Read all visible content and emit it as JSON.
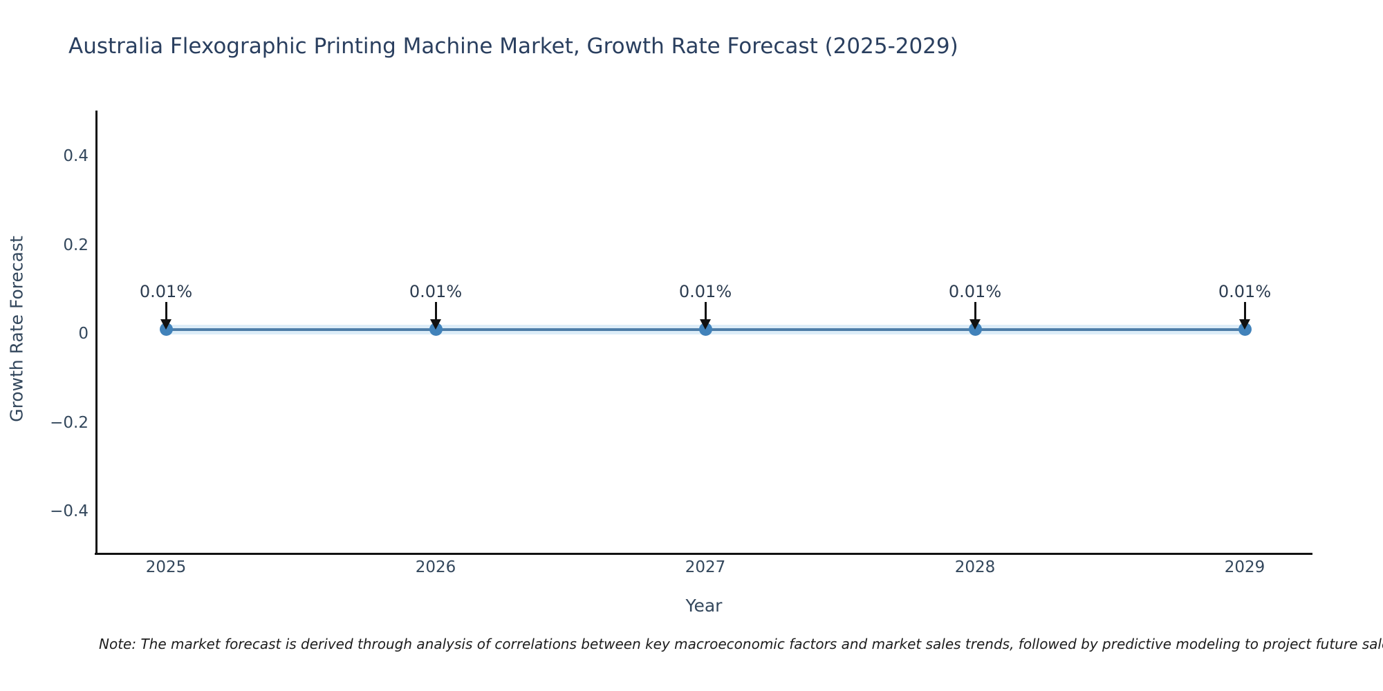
{
  "title": "Australia Flexographic Printing Machine Market, Growth Rate Forecast (2025-2029)",
  "y_axis": {
    "title": "Growth Rate Forecast",
    "tick_labels": [
      "0.4",
      "0.2",
      "0",
      "−0.2",
      "−0.4"
    ]
  },
  "x_axis": {
    "title": "Year",
    "tick_labels": [
      "2025",
      "2026",
      "2027",
      "2028",
      "2029"
    ]
  },
  "note": "Note: The market forecast is derived through analysis of correlations between key macroeconomic factors and market sales trends, followed by predictive modeling to project future sales",
  "colors": {
    "line": "#4e7da8",
    "line_halo": "#ddedf8",
    "marker": "#4182ba",
    "arrow": "#111111",
    "axis_line": "#111111",
    "title_text": "#2a3f5f",
    "tick_text": "#33475c",
    "note_text": "#1c1c1c",
    "background": "#ffffff"
  },
  "chart_data": {
    "type": "line",
    "title": "Australia Flexographic Printing Machine Market, Growth Rate Forecast (2025-2029)",
    "xlabel": "Year",
    "ylabel": "Growth Rate Forecast",
    "x": [
      2025,
      2026,
      2027,
      2028,
      2029
    ],
    "series": [
      {
        "name": "Growth Rate Forecast",
        "values": [
          0.01,
          0.01,
          0.01,
          0.01,
          0.01
        ],
        "unit": "%"
      }
    ],
    "point_labels": [
      "0.01%",
      "0.01%",
      "0.01%",
      "0.01%",
      "0.01%"
    ],
    "annotation_style": "black down-arrow from label to marker",
    "yticks": [
      0.4,
      0.2,
      0,
      -0.2,
      -0.4
    ],
    "ylim": [
      -0.5,
      0.5
    ],
    "grid": false,
    "legend": null,
    "marker": "circle",
    "line_shape": "flat horizontal"
  }
}
